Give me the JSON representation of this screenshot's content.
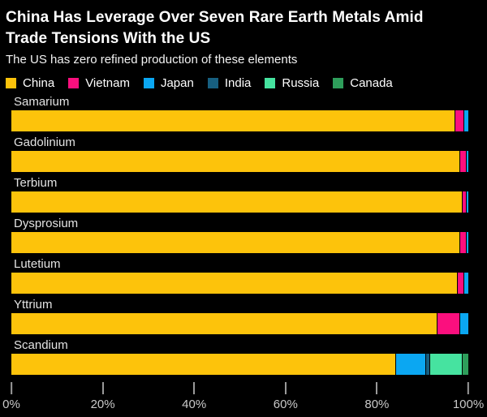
{
  "header": {
    "title": "China Has Leverage Over Seven Rare Earth Metals Amid Trade Tensions With the US",
    "title_lines": [
      "China Has Leverage Over Seven Rare Earth Metals Amid",
      "Trade Tensions With the US"
    ],
    "subtitle": "The US has zero refined production of these elements"
  },
  "legend": [
    {
      "label": "China",
      "color": "#fdc30b"
    },
    {
      "label": "Vietnam",
      "color": "#fb0f7e"
    },
    {
      "label": "Japan",
      "color": "#0ba7f2"
    },
    {
      "label": "India",
      "color": "#175f80"
    },
    {
      "label": "Russia",
      "color": "#46e3a0"
    },
    {
      "label": "Canada",
      "color": "#2e9e5b"
    }
  ],
  "chart_data": {
    "type": "bar",
    "orientation": "horizontal",
    "stacked": true,
    "unit": "percent",
    "title": "China Has Leverage Over Seven Rare Earth Metals Amid Trade Tensions With the US",
    "subtitle": "The US has zero refined production of these elements",
    "categories": [
      "Samarium",
      "Gadolinium",
      "Terbium",
      "Dysprosium",
      "Lutetium",
      "Yttrium",
      "Scandium"
    ],
    "series": [
      {
        "name": "China",
        "values": [
          97,
          98,
          98.5,
          98,
          97.5,
          93,
          84
        ]
      },
      {
        "name": "Vietnam",
        "values": [
          2,
          1.5,
          1,
          1.5,
          1.5,
          5,
          0
        ]
      },
      {
        "name": "Japan",
        "values": [
          1,
          0.5,
          0.5,
          0.5,
          1,
          2,
          6.5
        ]
      },
      {
        "name": "India",
        "values": [
          0,
          0,
          0,
          0,
          0,
          0,
          1
        ]
      },
      {
        "name": "Russia",
        "values": [
          0,
          0,
          0,
          0,
          0,
          0,
          7
        ]
      },
      {
        "name": "Canada",
        "values": [
          0,
          0,
          0,
          0,
          0,
          0,
          1.5
        ]
      }
    ],
    "xlim": [
      0,
      100
    ],
    "x_ticks": [
      0,
      20,
      40,
      60,
      80,
      100
    ],
    "x_tick_labels": [
      "0%",
      "20%",
      "40%",
      "60%",
      "80%",
      "100%"
    ],
    "legend_position": "top",
    "grid": false,
    "background_color": "#000000"
  }
}
